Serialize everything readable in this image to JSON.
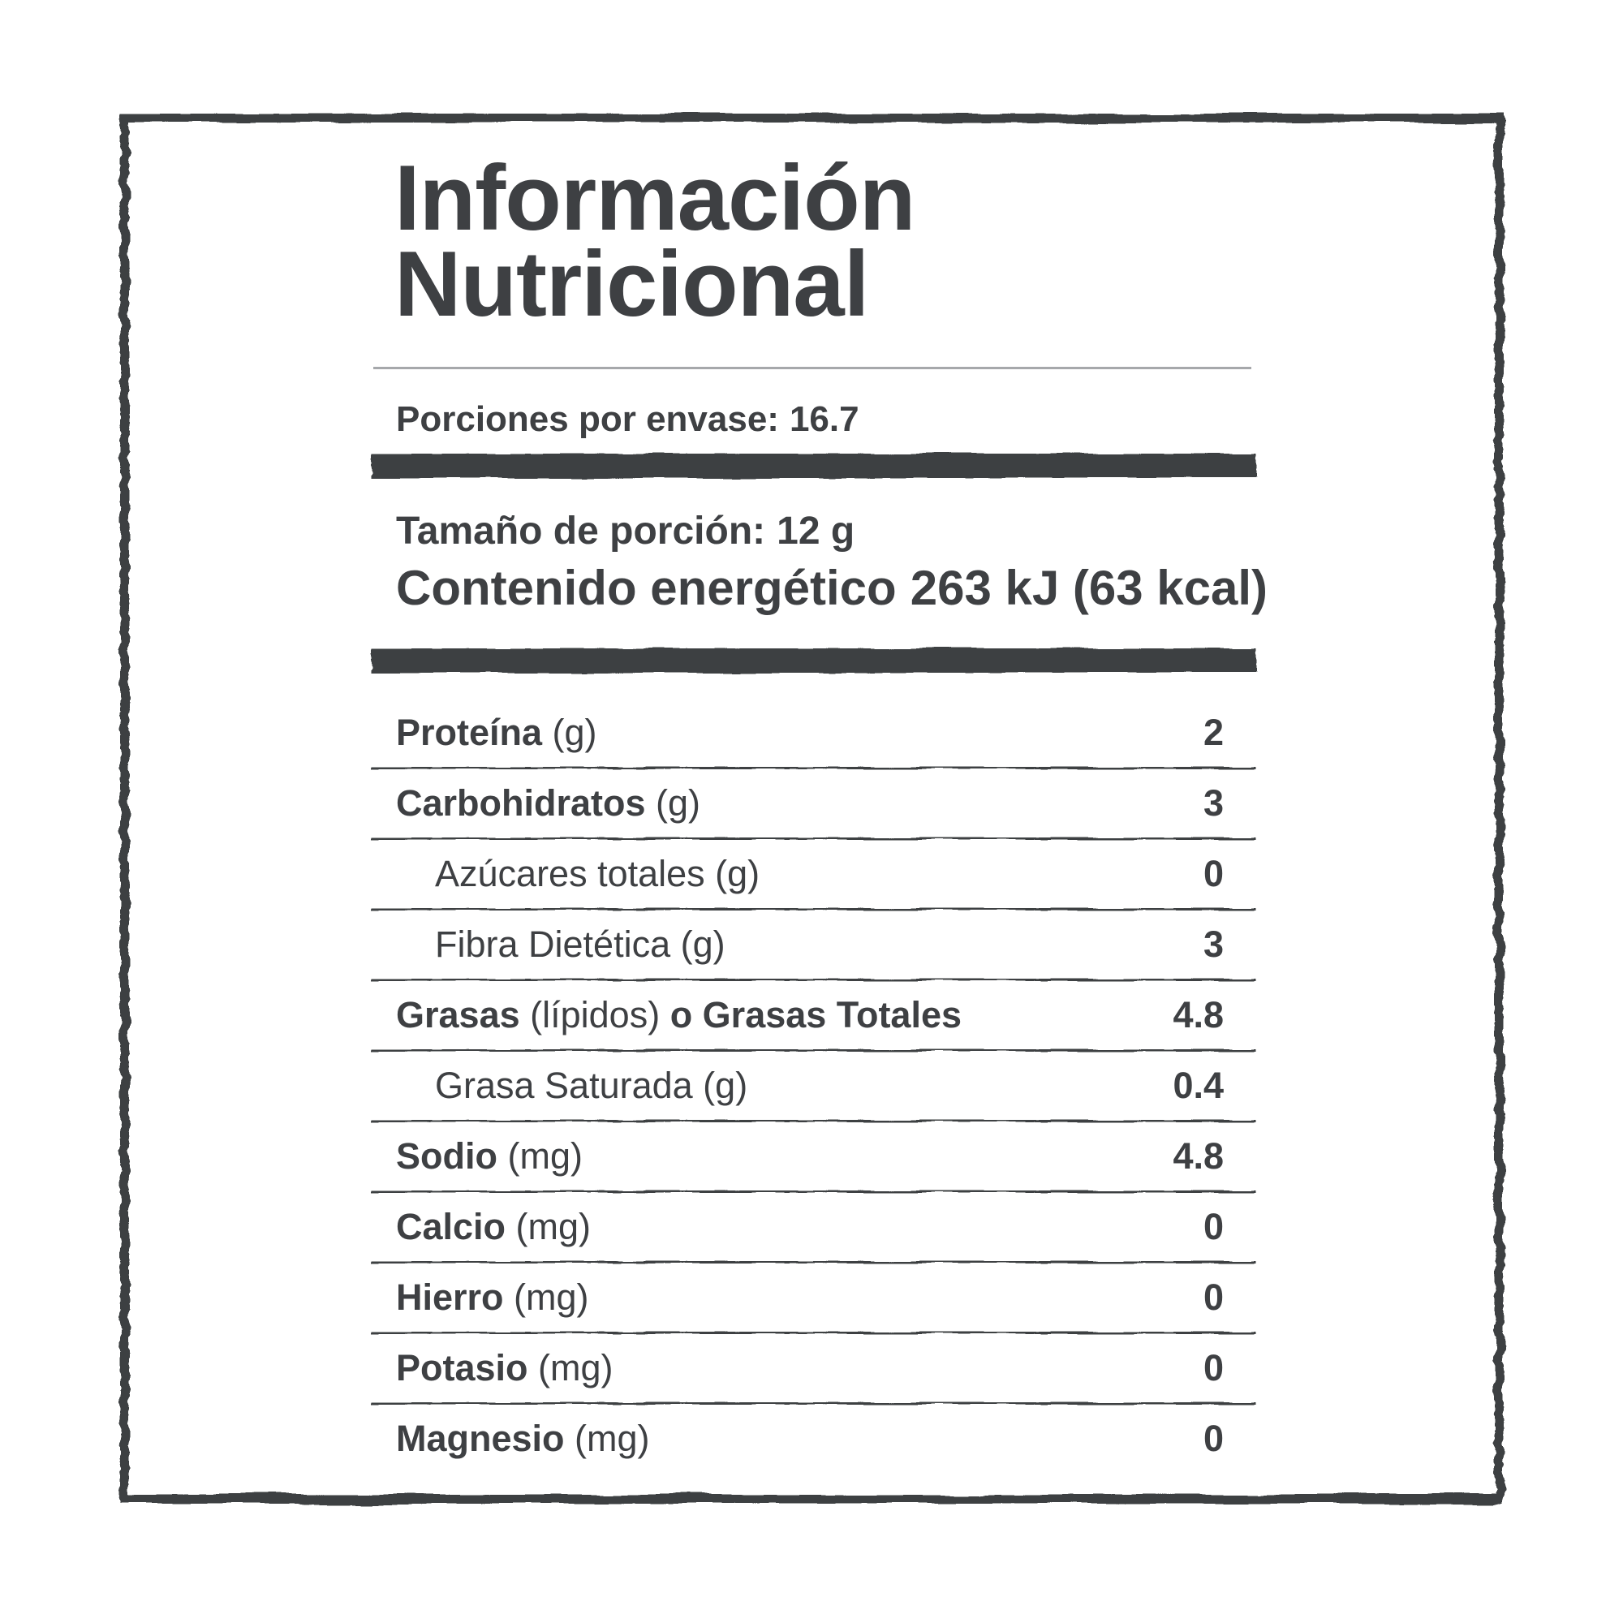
{
  "label": {
    "title": {
      "line1": "Información",
      "line2": "Nutricional"
    },
    "servings": {
      "label": "Porciones por envase:",
      "value": "16.7"
    },
    "serving_size": {
      "label": "Tamaño de porción:",
      "value": "12 g"
    },
    "energy": {
      "label": "Contenido energético",
      "value": "263 kJ (63 kcal)"
    },
    "rows": [
      {
        "b1": "Proteína",
        "r1": " (g)",
        "b2": "",
        "value": "2"
      },
      {
        "b1": "Carbohidratos",
        "r1": " (g)",
        "b2": "",
        "value": "3"
      },
      {
        "b1": "",
        "r1": "Azúcares totales (g)",
        "b2": "",
        "value": "0"
      },
      {
        "b1": "",
        "r1": "Fibra Dietética (g)",
        "b2": "",
        "value": "3"
      },
      {
        "b1": "Grasas",
        "r1": " (lípidos) ",
        "b2": "o Grasas Totales",
        "value": "4.8"
      },
      {
        "b1": "",
        "r1": "Grasa Saturada (g)",
        "b2": "",
        "value": "0.4"
      },
      {
        "b1": "Sodio",
        "r1": " (mg)",
        "b2": "",
        "value": "4.8"
      },
      {
        "b1": "Calcio",
        "r1": " (mg)",
        "b2": "",
        "value": "0"
      },
      {
        "b1": "Hierro",
        "r1": " (mg)",
        "b2": "",
        "value": "0"
      },
      {
        "b1": "Potasio",
        "r1": " (mg)",
        "b2": "",
        "value": "0"
      },
      {
        "b1": "Magnesio",
        "r1": " (mg)",
        "b2": "",
        "value": "0"
      }
    ],
    "colors": {
      "ink": "#3e4043",
      "rule_light": "#a6a8ab",
      "background": "#ffffff"
    }
  }
}
